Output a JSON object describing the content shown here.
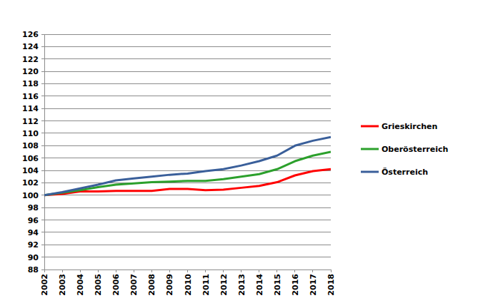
{
  "chart_data": {
    "type": "line",
    "categories": [
      "2002",
      "2003",
      "2004",
      "2005",
      "2006",
      "2007",
      "2008",
      "2009",
      "2010",
      "2011",
      "2012",
      "2013",
      "2014",
      "2015",
      "2016",
      "2017",
      "2018"
    ],
    "series": [
      {
        "name": "Grieskirchen",
        "color": "#ff0000",
        "values": [
          100,
          100.2,
          100.6,
          100.6,
          100.7,
          100.7,
          100.7,
          101.0,
          101.0,
          100.8,
          100.9,
          101.2,
          101.5,
          102.1,
          103.2,
          103.9,
          104.2
        ]
      },
      {
        "name": "Oberösterreich",
        "color": "#2ca02c",
        "values": [
          100,
          100.4,
          100.8,
          101.3,
          101.7,
          101.9,
          102.1,
          102.2,
          102.3,
          102.3,
          102.6,
          103.0,
          103.4,
          104.2,
          105.5,
          106.4,
          107.0
        ]
      },
      {
        "name": "Österreich",
        "color": "#3a5f9a",
        "values": [
          100,
          100.5,
          101.1,
          101.7,
          102.4,
          102.7,
          103.0,
          103.3,
          103.5,
          103.9,
          104.2,
          104.8,
          105.5,
          106.4,
          108.0,
          108.8,
          109.4
        ]
      }
    ],
    "ylim": [
      88,
      126
    ],
    "yticks": [
      88,
      90,
      92,
      94,
      96,
      98,
      100,
      102,
      104,
      106,
      108,
      110,
      112,
      114,
      116,
      118,
      120,
      122,
      124,
      126
    ],
    "grid": true,
    "legend": "right"
  }
}
